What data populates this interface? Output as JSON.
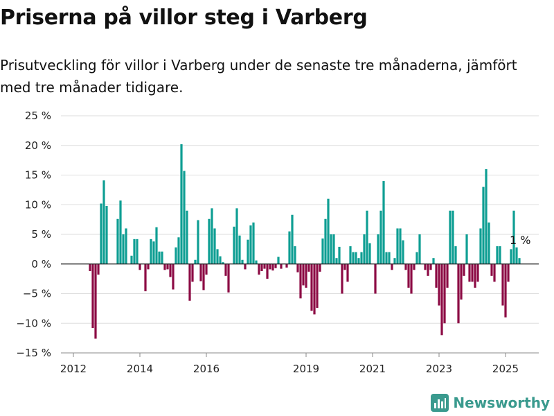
{
  "title": "Priserna på villor steg i Varberg",
  "subtitle": "Prisutveckling för villor i Varberg under de senaste tre månaderna, jämfört med tre månader tidigare.",
  "brand": "Newsworthy",
  "colors": {
    "positive": "#0e9e93",
    "negative": "#8c0a44",
    "grid": "#dddddd",
    "zero": "#222222",
    "brand": "#3a9a8e"
  },
  "chart_data": {
    "type": "bar",
    "title": "Priserna på villor steg i Varberg",
    "xlabel": "",
    "ylabel": "",
    "ylim": [
      -15,
      25
    ],
    "yticks": [
      25,
      20,
      15,
      10,
      5,
      0,
      -5,
      -10,
      -15
    ],
    "ytick_labels": [
      "25 %",
      "20 %",
      "15 %",
      "10 %",
      "5 %",
      "0 %",
      "−5 %",
      "−10 %",
      "−15 %"
    ],
    "x_start": "2012-01",
    "xticks": [
      {
        "label": "2012",
        "date": "2012-01"
      },
      {
        "label": "2014",
        "date": "2014-01"
      },
      {
        "label": "2016",
        "date": "2016-01"
      },
      {
        "label": "2019",
        "date": "2019-01"
      },
      {
        "label": "2021",
        "date": "2021-01"
      },
      {
        "label": "2023",
        "date": "2023-01"
      },
      {
        "label": "2025",
        "date": "2025-01"
      }
    ],
    "annotation": {
      "text": "1 %",
      "date": "2025-05",
      "value": 1
    },
    "grid": true,
    "legend": "none",
    "values": [
      {
        "date": "2012-07",
        "value": -1.2
      },
      {
        "date": "2012-08",
        "value": -10.8
      },
      {
        "date": "2012-09",
        "value": -12.6
      },
      {
        "date": "2012-10",
        "value": -1.8
      },
      {
        "date": "2012-11",
        "value": 10.2
      },
      {
        "date": "2012-12",
        "value": 14.1
      },
      {
        "date": "2013-01",
        "value": 9.8
      },
      {
        "date": "2013-05",
        "value": 7.6
      },
      {
        "date": "2013-06",
        "value": 10.7
      },
      {
        "date": "2013-07",
        "value": 5.0
      },
      {
        "date": "2013-08",
        "value": 6.0
      },
      {
        "date": "2013-10",
        "value": 1.4
      },
      {
        "date": "2013-11",
        "value": 4.2
      },
      {
        "date": "2013-12",
        "value": 4.2
      },
      {
        "date": "2014-01",
        "value": -1.0
      },
      {
        "date": "2014-03",
        "value": -4.6
      },
      {
        "date": "2014-04",
        "value": -0.9
      },
      {
        "date": "2014-05",
        "value": 4.2
      },
      {
        "date": "2014-06",
        "value": 3.8
      },
      {
        "date": "2014-07",
        "value": 6.2
      },
      {
        "date": "2014-08",
        "value": 2.1
      },
      {
        "date": "2014-09",
        "value": 2.1
      },
      {
        "date": "2014-10",
        "value": -1.0
      },
      {
        "date": "2014-11",
        "value": -0.9
      },
      {
        "date": "2014-12",
        "value": -2.2
      },
      {
        "date": "2015-01",
        "value": -4.3
      },
      {
        "date": "2015-02",
        "value": 2.8
      },
      {
        "date": "2015-03",
        "value": 4.5
      },
      {
        "date": "2015-04",
        "value": 20.2
      },
      {
        "date": "2015-05",
        "value": 15.7
      },
      {
        "date": "2015-06",
        "value": 9.0
      },
      {
        "date": "2015-07",
        "value": -6.2
      },
      {
        "date": "2015-08",
        "value": -3.0
      },
      {
        "date": "2015-09",
        "value": 0.7
      },
      {
        "date": "2015-10",
        "value": 7.4
      },
      {
        "date": "2015-11",
        "value": -2.9
      },
      {
        "date": "2015-12",
        "value": -4.4
      },
      {
        "date": "2016-01",
        "value": -1.8
      },
      {
        "date": "2016-02",
        "value": 7.6
      },
      {
        "date": "2016-03",
        "value": 9.4
      },
      {
        "date": "2016-04",
        "value": 6.0
      },
      {
        "date": "2016-05",
        "value": 2.5
      },
      {
        "date": "2016-06",
        "value": 1.3
      },
      {
        "date": "2016-07",
        "value": 0.3
      },
      {
        "date": "2016-08",
        "value": -2.0
      },
      {
        "date": "2016-09",
        "value": -4.8
      },
      {
        "date": "2016-11",
        "value": 6.3
      },
      {
        "date": "2016-12",
        "value": 9.4
      },
      {
        "date": "2017-01",
        "value": 4.8
      },
      {
        "date": "2017-02",
        "value": 0.7
      },
      {
        "date": "2017-03",
        "value": -0.9
      },
      {
        "date": "2017-04",
        "value": 4.1
      },
      {
        "date": "2017-05",
        "value": 6.5
      },
      {
        "date": "2017-06",
        "value": 7.0
      },
      {
        "date": "2017-07",
        "value": 0.6
      },
      {
        "date": "2017-08",
        "value": -1.8
      },
      {
        "date": "2017-09",
        "value": -1.2
      },
      {
        "date": "2017-10",
        "value": -0.8
      },
      {
        "date": "2017-11",
        "value": -2.5
      },
      {
        "date": "2017-12",
        "value": -0.9
      },
      {
        "date": "2018-01",
        "value": -1.1
      },
      {
        "date": "2018-02",
        "value": -0.7
      },
      {
        "date": "2018-03",
        "value": 1.2
      },
      {
        "date": "2018-04",
        "value": -0.8
      },
      {
        "date": "2018-06",
        "value": -0.6
      },
      {
        "date": "2018-07",
        "value": 5.5
      },
      {
        "date": "2018-08",
        "value": 8.3
      },
      {
        "date": "2018-09",
        "value": 3.0
      },
      {
        "date": "2018-10",
        "value": -1.4
      },
      {
        "date": "2018-11",
        "value": -5.8
      },
      {
        "date": "2018-12",
        "value": -3.6
      },
      {
        "date": "2019-01",
        "value": -4.0
      },
      {
        "date": "2019-02",
        "value": -1.3
      },
      {
        "date": "2019-03",
        "value": -7.9
      },
      {
        "date": "2019-04",
        "value": -8.5
      },
      {
        "date": "2019-05",
        "value": -7.4
      },
      {
        "date": "2019-06",
        "value": -1.3
      },
      {
        "date": "2019-07",
        "value": 4.3
      },
      {
        "date": "2019-08",
        "value": 7.6
      },
      {
        "date": "2019-09",
        "value": 11.0
      },
      {
        "date": "2019-10",
        "value": 5.0
      },
      {
        "date": "2019-11",
        "value": 5.0
      },
      {
        "date": "2019-12",
        "value": 1.0
      },
      {
        "date": "2020-01",
        "value": 2.9
      },
      {
        "date": "2020-02",
        "value": -5.0
      },
      {
        "date": "2020-03",
        "value": -1.0
      },
      {
        "date": "2020-04",
        "value": -3.0
      },
      {
        "date": "2020-05",
        "value": 3.0
      },
      {
        "date": "2020-06",
        "value": 2.0
      },
      {
        "date": "2020-07",
        "value": 2.0
      },
      {
        "date": "2020-08",
        "value": 1.0
      },
      {
        "date": "2020-09",
        "value": 2.0
      },
      {
        "date": "2020-10",
        "value": 5.0
      },
      {
        "date": "2020-11",
        "value": 9.0
      },
      {
        "date": "2020-12",
        "value": 3.5
      },
      {
        "date": "2021-02",
        "value": -5.0
      },
      {
        "date": "2021-03",
        "value": 5.0
      },
      {
        "date": "2021-04",
        "value": 9.0
      },
      {
        "date": "2021-05",
        "value": 14.0
      },
      {
        "date": "2021-06",
        "value": 2.0
      },
      {
        "date": "2021-07",
        "value": 2.0
      },
      {
        "date": "2021-08",
        "value": -1.0
      },
      {
        "date": "2021-09",
        "value": 1.0
      },
      {
        "date": "2021-10",
        "value": 6.0
      },
      {
        "date": "2021-11",
        "value": 6.0
      },
      {
        "date": "2021-12",
        "value": 4.0
      },
      {
        "date": "2022-01",
        "value": -1.0
      },
      {
        "date": "2022-02",
        "value": -4.0
      },
      {
        "date": "2022-03",
        "value": -5.0
      },
      {
        "date": "2022-04",
        "value": -1.0
      },
      {
        "date": "2022-05",
        "value": 2.0
      },
      {
        "date": "2022-06",
        "value": 5.0
      },
      {
        "date": "2022-08",
        "value": -1.0
      },
      {
        "date": "2022-09",
        "value": -2.0
      },
      {
        "date": "2022-10",
        "value": -1.0
      },
      {
        "date": "2022-11",
        "value": 1.0
      },
      {
        "date": "2022-12",
        "value": -4.0
      },
      {
        "date": "2023-01",
        "value": -7.0
      },
      {
        "date": "2023-02",
        "value": -12.0
      },
      {
        "date": "2023-03",
        "value": -10.0
      },
      {
        "date": "2023-04",
        "value": -4.0
      },
      {
        "date": "2023-05",
        "value": 9.0
      },
      {
        "date": "2023-06",
        "value": 9.0
      },
      {
        "date": "2023-07",
        "value": 3.0
      },
      {
        "date": "2023-08",
        "value": -10.0
      },
      {
        "date": "2023-09",
        "value": -6.0
      },
      {
        "date": "2023-10",
        "value": -2.0
      },
      {
        "date": "2023-11",
        "value": 5.0
      },
      {
        "date": "2023-12",
        "value": -3.0
      },
      {
        "date": "2024-01",
        "value": -3.0
      },
      {
        "date": "2024-02",
        "value": -4.0
      },
      {
        "date": "2024-03",
        "value": -3.0
      },
      {
        "date": "2024-04",
        "value": 6.0
      },
      {
        "date": "2024-05",
        "value": 13.0
      },
      {
        "date": "2024-06",
        "value": 16.0
      },
      {
        "date": "2024-07",
        "value": 7.0
      },
      {
        "date": "2024-08",
        "value": -2.0
      },
      {
        "date": "2024-09",
        "value": -3.0
      },
      {
        "date": "2024-10",
        "value": 3.0
      },
      {
        "date": "2024-11",
        "value": 3.0
      },
      {
        "date": "2024-12",
        "value": -7.0
      },
      {
        "date": "2025-01",
        "value": -9.0
      },
      {
        "date": "2025-02",
        "value": -3.0
      },
      {
        "date": "2025-03",
        "value": 2.5
      },
      {
        "date": "2025-04",
        "value": 9.0
      },
      {
        "date": "2025-05",
        "value": 2.8
      },
      {
        "date": "2025-06",
        "value": 1.0
      }
    ]
  }
}
